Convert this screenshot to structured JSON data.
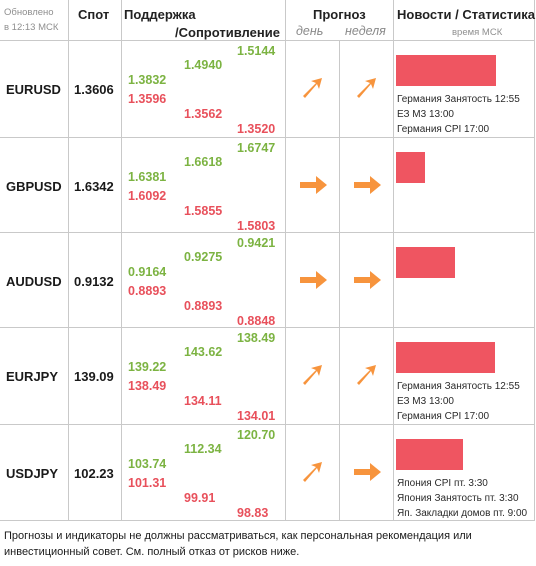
{
  "header": {
    "updated_line1": "Обновлено",
    "updated_line2": "в 12:13 МСК",
    "spot": "Спот",
    "support": "Поддержка",
    "resistance": "/Сопротивление",
    "forecast": "Прогноз",
    "day": "день",
    "week": "неделя",
    "news": "Новости / Статистика",
    "time_label": "время МСК"
  },
  "colors": {
    "support": "#7cb342",
    "resistance": "#e8505b",
    "arrow": "#f7943d",
    "bar": "#ef5561"
  },
  "rows": [
    {
      "pair": "EURUSD",
      "spot": "1.3606",
      "s1": "1.3832",
      "r1": "1.3596",
      "s2": "1.4940",
      "r2": "1.3562",
      "s3": "1.5144",
      "r3": "1.3520",
      "day_icon": "arrow-up-right-icon",
      "week_icon": "arrow-up-right-icon",
      "news_level": 0.93,
      "news": [
        "Германия Занятость 12:55",
        "ЕЗ М3 13:00",
        "Германия CPI 17:00"
      ]
    },
    {
      "pair": "GBPUSD",
      "spot": "1.6342",
      "s1": "1.6381",
      "r1": "1.6092",
      "s2": "1.6618",
      "r2": "1.5855",
      "s3": "1.6747",
      "r3": "1.5803",
      "day_icon": "arrow-right-icon",
      "week_icon": "arrow-right-icon",
      "news_level": 0.27,
      "news": []
    },
    {
      "pair": "AUDUSD",
      "spot": "0.9132",
      "s1": "0.9164",
      "r1": "0.8893",
      "s2": "0.9275",
      "r2": "0.8893",
      "s3": "0.9421",
      "r3": "0.8848",
      "day_icon": "arrow-right-icon",
      "week_icon": "arrow-right-icon",
      "news_level": 0.55,
      "news": []
    },
    {
      "pair": "EURJPY",
      "spot": "139.09",
      "s1": "139.22",
      "r1": "138.49",
      "s2": "143.62",
      "r2": "134.11",
      "s3": "138.49",
      "r3": "134.01",
      "day_icon": "arrow-up-right-icon",
      "week_icon": "arrow-up-right-icon",
      "news_level": 0.92,
      "news": [
        "Германия Занятость 12:55",
        "ЕЗ М3 13:00",
        "Германия CPI 17:00"
      ]
    },
    {
      "pair": "USDJPY",
      "spot": "102.23",
      "s1": "103.74",
      "r1": "101.31",
      "s2": "112.34",
      "r2": "99.91",
      "s3": "120.70",
      "r3": "98.83",
      "day_icon": "arrow-up-right-icon",
      "week_icon": "arrow-right-icon",
      "news_level": 0.62,
      "news": [
        "Япония CPI пт. 3:30",
        "Япония Занятость пт. 3:30",
        "Яп. Закладки домов пт. 9:00"
      ]
    }
  ],
  "disclaimer": "Прогнозы и индикаторы не должны рассматриваться, как персональная рекомендация или инвестиционный совет. См. полный отказ от рисков ниже."
}
